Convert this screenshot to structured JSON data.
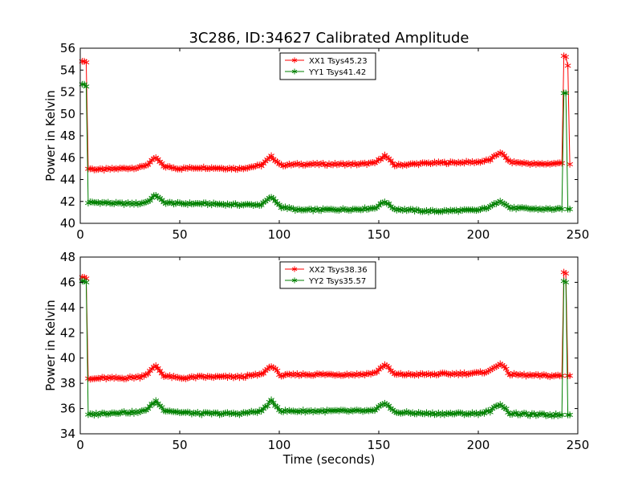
{
  "figure_title": "3C286, ID:34627 Calibrated Amplitude",
  "xlabel": "Time (seconds)",
  "chart_data": [
    {
      "type": "line",
      "title": "3C286, ID:34627 Calibrated Amplitude",
      "xlabel": "",
      "ylabel": "Power in Kelvin",
      "xlim": [
        0,
        250
      ],
      "ylim": [
        40,
        56
      ],
      "xticks": [
        "0",
        "50",
        "100",
        "150",
        "200",
        "250"
      ],
      "yticks": [
        "40",
        "42",
        "44",
        "46",
        "48",
        "50",
        "52",
        "54",
        "56"
      ],
      "grid": false,
      "legend_position": "top-center",
      "series": [
        {
          "name": "XX1 Tsys45.23",
          "color": "#ff0000",
          "x": [
            1,
            2,
            3,
            4,
            10,
            20,
            30,
            34,
            38,
            42,
            50,
            60,
            80,
            91,
            96,
            101,
            110,
            140,
            148,
            153,
            158,
            175,
            200,
            206,
            211,
            216,
            230,
            242,
            243,
            244,
            245,
            246
          ],
          "y": [
            54.8,
            54.8,
            54.7,
            45.0,
            44.9,
            45.0,
            45.1,
            45.4,
            46.0,
            45.2,
            45.0,
            45.1,
            45.0,
            45.3,
            46.1,
            45.3,
            45.4,
            45.4,
            45.5,
            46.2,
            45.3,
            45.5,
            45.6,
            45.8,
            46.5,
            45.6,
            45.4,
            45.5,
            55.3,
            55.2,
            54.4,
            45.4
          ]
        },
        {
          "name": "YY1 Tsys41.42",
          "color": "#008000",
          "x": [
            1,
            2,
            3,
            4,
            10,
            20,
            30,
            34,
            38,
            42,
            50,
            60,
            80,
            91,
            96,
            101,
            110,
            140,
            148,
            153,
            158,
            175,
            200,
            206,
            211,
            216,
            230,
            242,
            243,
            244,
            245,
            246
          ],
          "y": [
            52.7,
            52.7,
            52.5,
            41.9,
            41.9,
            41.8,
            41.8,
            42.0,
            42.6,
            41.9,
            41.8,
            41.8,
            41.7,
            41.7,
            42.4,
            41.5,
            41.2,
            41.3,
            41.4,
            42.0,
            41.3,
            41.1,
            41.2,
            41.5,
            42.1,
            41.4,
            41.3,
            41.3,
            51.9,
            51.9,
            41.3,
            41.3
          ]
        }
      ]
    },
    {
      "type": "line",
      "title": "",
      "xlabel": "Time (seconds)",
      "ylabel": "Power in Kelvin",
      "xlim": [
        0,
        250
      ],
      "ylim": [
        34,
        48
      ],
      "xticks": [
        "0",
        "50",
        "100",
        "150",
        "200",
        "250"
      ],
      "yticks": [
        "34",
        "36",
        "38",
        "40",
        "42",
        "44",
        "46",
        "48"
      ],
      "grid": false,
      "legend_position": "top-center",
      "series": [
        {
          "name": "XX2 Tsys38.36",
          "color": "#ff0000",
          "x": [
            1,
            2,
            3,
            4,
            10,
            20,
            30,
            34,
            38,
            42,
            50,
            60,
            80,
            91,
            96,
            101,
            110,
            140,
            148,
            153,
            158,
            175,
            200,
            206,
            211,
            216,
            230,
            242,
            243,
            244,
            245,
            246
          ],
          "y": [
            46.4,
            46.4,
            46.3,
            38.3,
            38.4,
            38.4,
            38.5,
            38.8,
            39.4,
            38.6,
            38.4,
            38.5,
            38.5,
            38.7,
            39.4,
            38.6,
            38.7,
            38.7,
            38.8,
            39.5,
            38.7,
            38.7,
            38.8,
            39.0,
            39.6,
            38.7,
            38.6,
            38.6,
            46.8,
            46.7,
            38.6,
            38.6
          ]
        },
        {
          "name": "YY2 Tsys35.57",
          "color": "#008000",
          "x": [
            1,
            2,
            3,
            4,
            10,
            20,
            30,
            34,
            38,
            42,
            50,
            60,
            80,
            91,
            96,
            101,
            110,
            140,
            148,
            153,
            158,
            175,
            200,
            206,
            211,
            216,
            230,
            242,
            243,
            244,
            245,
            246
          ],
          "y": [
            46.1,
            46.1,
            46.0,
            35.5,
            35.6,
            35.7,
            35.7,
            36.0,
            36.6,
            35.9,
            35.7,
            35.6,
            35.6,
            35.8,
            36.6,
            35.8,
            35.8,
            35.8,
            35.8,
            36.5,
            35.7,
            35.6,
            35.6,
            35.8,
            36.4,
            35.6,
            35.5,
            35.5,
            46.1,
            46.0,
            35.5,
            35.5
          ]
        }
      ]
    }
  ]
}
